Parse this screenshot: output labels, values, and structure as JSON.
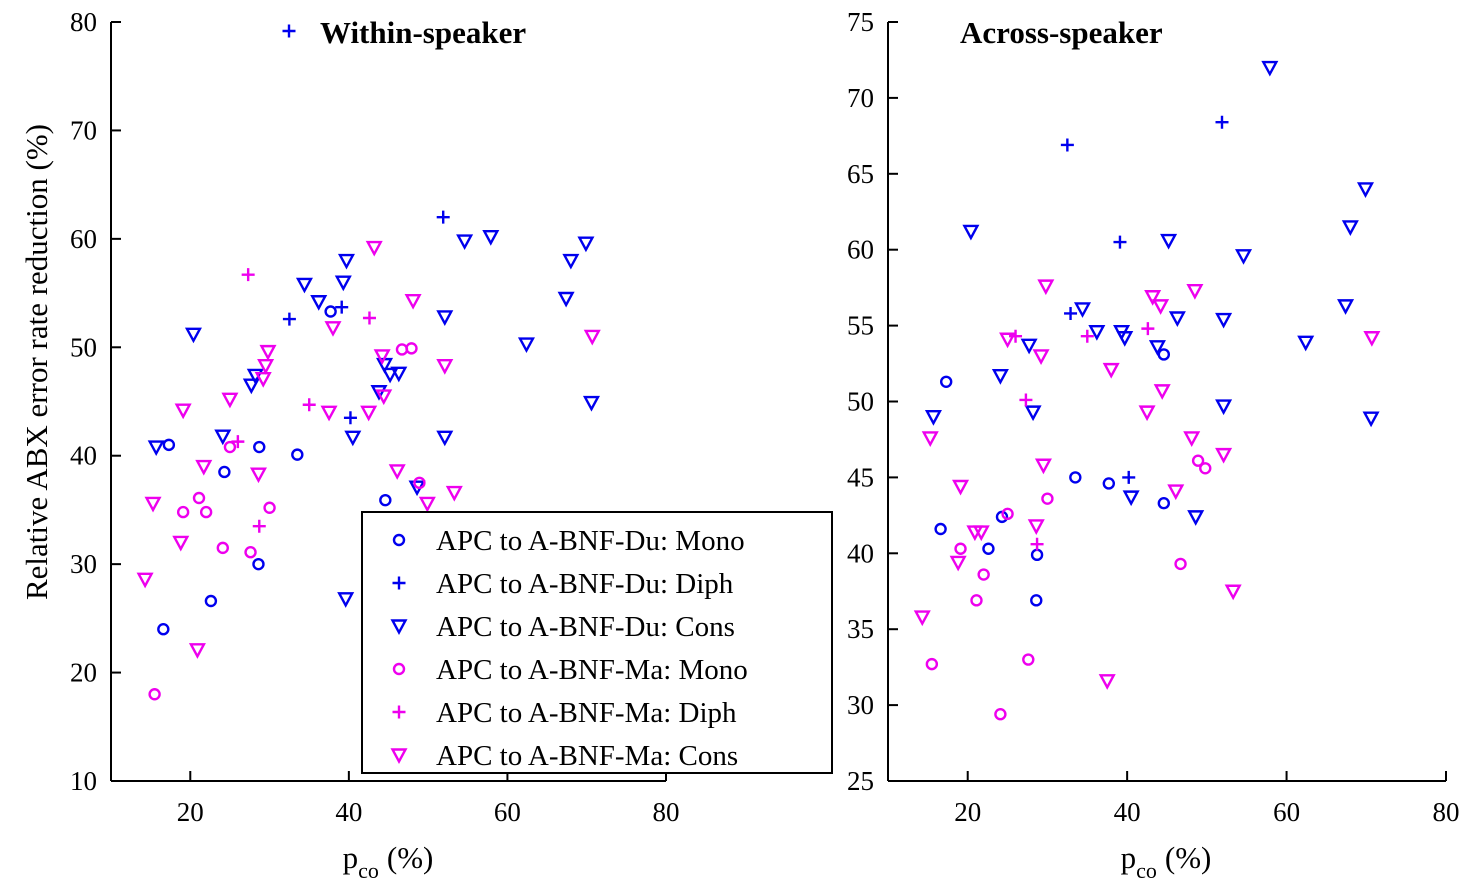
{
  "chart_data": [
    {
      "type": "scatter",
      "title": "Within-speaker",
      "xlabel": "p",
      "xlabel_sub": "co",
      "xlabel_unit": "(%)",
      "ylabel": "Relative ABX error rate reduction (%)",
      "xlim": [
        10,
        80
      ],
      "ylim": [
        10,
        80
      ],
      "xticks": [
        "20",
        "40",
        "60",
        "80"
      ],
      "yticks": [
        "10",
        "20",
        "30",
        "40",
        "50",
        "60",
        "70",
        "80"
      ],
      "legend_position": "bottom-right",
      "series": [
        {
          "name": "APC to A-BNF-Du: Mono",
          "color": "#0000ee",
          "marker": "circle",
          "points": [
            [
              16.6,
              24
            ],
            [
              17.3,
              41
            ],
            [
              22.6,
              26.6
            ],
            [
              24.3,
              38.5
            ],
            [
              28.6,
              30
            ],
            [
              28.7,
              40.8
            ],
            [
              33.5,
              40.1
            ],
            [
              37.7,
              53.3
            ],
            [
              44.6,
              35.9
            ]
          ]
        },
        {
          "name": "APC to A-BNF-Du: Diph",
          "color": "#0000ee",
          "marker": "plus",
          "points": [
            [
              32.5,
              52.6
            ],
            [
              39.1,
              53.7
            ],
            [
              40.2,
              43.5
            ],
            [
              51.9,
              62
            ]
          ]
        },
        {
          "name": "APC to A-BNF-Du: Cons",
          "color": "#0000ee",
          "marker": "triangle-down",
          "points": [
            [
              15.7,
              40.8
            ],
            [
              20.4,
              51.2
            ],
            [
              24.1,
              41.8
            ],
            [
              27.7,
              46.5
            ],
            [
              28.2,
              47.4
            ],
            [
              34.4,
              55.8
            ],
            [
              36.2,
              54.2
            ],
            [
              39.6,
              26.8
            ],
            [
              39.3,
              56
            ],
            [
              39.7,
              58
            ],
            [
              40.5,
              41.7
            ],
            [
              43.8,
              45.9
            ],
            [
              44.5,
              48.4
            ],
            [
              45.2,
              47.5
            ],
            [
              46.3,
              47.6
            ],
            [
              48.6,
              37.1
            ],
            [
              52.1,
              52.8
            ],
            [
              52.1,
              41.7
            ],
            [
              54.6,
              59.8
            ],
            [
              57.9,
              60.2
            ],
            [
              62.4,
              50.3
            ],
            [
              67.4,
              54.5
            ],
            [
              68,
              58
            ],
            [
              69.9,
              59.6
            ],
            [
              70.6,
              44.9
            ]
          ]
        },
        {
          "name": "APC to A-BNF-Ma: Mono",
          "color": "#ee00ee",
          "marker": "circle",
          "points": [
            [
              15.5,
              18
            ],
            [
              19.1,
              34.8
            ],
            [
              21.1,
              36.1
            ],
            [
              22,
              34.8
            ],
            [
              24.1,
              31.5
            ],
            [
              25,
              40.8
            ],
            [
              27.6,
              31.1
            ],
            [
              30,
              35.2
            ],
            [
              46.7,
              49.8
            ],
            [
              47.9,
              49.9
            ],
            [
              48.9,
              37.5
            ]
          ]
        },
        {
          "name": "APC to A-BNF-Ma: Diph",
          "color": "#ee00ee",
          "marker": "plus",
          "points": [
            [
              26,
              41.3
            ],
            [
              27.3,
              56.7
            ],
            [
              28.7,
              33.5
            ],
            [
              35,
              44.7
            ],
            [
              42.6,
              52.7
            ]
          ]
        },
        {
          "name": "APC to A-BNF-Ma: Cons",
          "color": "#ee00ee",
          "marker": "triangle-down",
          "points": [
            [
              14.3,
              28.6
            ],
            [
              15.3,
              35.6
            ],
            [
              18.8,
              32
            ],
            [
              19.1,
              44.2
            ],
            [
              20.9,
              22.1
            ],
            [
              21.7,
              39
            ],
            [
              25,
              45.2
            ],
            [
              28.6,
              38.3
            ],
            [
              29.2,
              47.1
            ],
            [
              29.5,
              48.3
            ],
            [
              29.8,
              49.6
            ],
            [
              37.5,
              44
            ],
            [
              38,
              51.8
            ],
            [
              42.5,
              44
            ],
            [
              43.2,
              59.2
            ],
            [
              44.2,
              49.2
            ],
            [
              44.4,
              45.5
            ],
            [
              46.1,
              38.6
            ],
            [
              48.1,
              54.3
            ],
            [
              49.9,
              35.6
            ],
            [
              52.1,
              48.3
            ],
            [
              53.3,
              36.6
            ],
            [
              70.7,
              51
            ]
          ]
        }
      ]
    },
    {
      "type": "scatter",
      "title": "Across-speaker",
      "xlabel": "p",
      "xlabel_sub": "co",
      "xlabel_unit": "(%)",
      "ylabel": "",
      "xlim": [
        10,
        80
      ],
      "ylim": [
        25,
        75
      ],
      "xticks": [
        "20",
        "40",
        "60",
        "80"
      ],
      "yticks": [
        "25",
        "30",
        "35",
        "40",
        "45",
        "50",
        "55",
        "60",
        "65",
        "70",
        "75"
      ],
      "series": [
        {
          "name": "APC to A-BNF-Du: Mono",
          "color": "#0000ee",
          "marker": "circle",
          "points": [
            [
              16.6,
              41.6
            ],
            [
              17.3,
              51.3
            ],
            [
              22.6,
              40.3
            ],
            [
              24.3,
              42.4
            ],
            [
              28.6,
              36.9
            ],
            [
              28.7,
              39.9
            ],
            [
              33.5,
              45
            ],
            [
              37.7,
              44.6
            ],
            [
              44.6,
              43.3
            ],
            [
              44.6,
              53.1
            ]
          ]
        },
        {
          "name": "APC to A-BNF-Du: Diph",
          "color": "#0000ee",
          "marker": "plus",
          "points": [
            [
              32.5,
              66.9
            ],
            [
              32.9,
              55.8
            ],
            [
              39.1,
              60.5
            ],
            [
              40.2,
              45
            ],
            [
              51.9,
              68.4
            ]
          ]
        },
        {
          "name": "APC to A-BNF-Du: Cons",
          "color": "#0000ee",
          "marker": "triangle-down",
          "points": [
            [
              15.7,
              49
            ],
            [
              20.4,
              61.2
            ],
            [
              24.1,
              51.7
            ],
            [
              27.7,
              53.7
            ],
            [
              28.2,
              49.3
            ],
            [
              34.4,
              56.1
            ],
            [
              36.2,
              54.6
            ],
            [
              39.3,
              54.6
            ],
            [
              39.7,
              54.2
            ],
            [
              40.5,
              43.7
            ],
            [
              43.8,
              53.6
            ],
            [
              45.2,
              60.6
            ],
            [
              46.3,
              55.5
            ],
            [
              48.6,
              42.4
            ],
            [
              52.1,
              55.4
            ],
            [
              52.1,
              49.7
            ],
            [
              54.6,
              59.6
            ],
            [
              57.9,
              72
            ],
            [
              62.4,
              53.9
            ],
            [
              67.4,
              56.3
            ],
            [
              68,
              61.5
            ],
            [
              69.9,
              64
            ],
            [
              70.6,
              48.9
            ]
          ]
        },
        {
          "name": "APC to A-BNF-Ma: Mono",
          "color": "#ee00ee",
          "marker": "circle",
          "points": [
            [
              15.5,
              32.7
            ],
            [
              19.1,
              40.3
            ],
            [
              21.1,
              36.9
            ],
            [
              22,
              38.6
            ],
            [
              24.1,
              29.4
            ],
            [
              25,
              42.6
            ],
            [
              27.6,
              33
            ],
            [
              30,
              43.6
            ],
            [
              46.7,
              39.3
            ],
            [
              48.9,
              46.1
            ],
            [
              49.8,
              45.6
            ]
          ]
        },
        {
          "name": "APC to A-BNF-Ma: Diph",
          "color": "#ee00ee",
          "marker": "plus",
          "points": [
            [
              26,
              54.3
            ],
            [
              27.3,
              50.1
            ],
            [
              28.7,
              40.6
            ],
            [
              35,
              54.3
            ],
            [
              42.6,
              54.8
            ]
          ]
        },
        {
          "name": "APC to A-BNF-Ma: Cons",
          "color": "#ee00ee",
          "marker": "triangle-down",
          "points": [
            [
              14.3,
              35.8
            ],
            [
              15.3,
              47.6
            ],
            [
              18.8,
              39.4
            ],
            [
              19.1,
              44.4
            ],
            [
              20.9,
              41.4
            ],
            [
              21.7,
              41.4
            ],
            [
              25,
              54.1
            ],
            [
              28.6,
              41.8
            ],
            [
              29.2,
              53
            ],
            [
              29.5,
              45.8
            ],
            [
              29.8,
              57.6
            ],
            [
              37.5,
              31.6
            ],
            [
              38,
              52.1
            ],
            [
              42.5,
              49.3
            ],
            [
              43.2,
              56.9
            ],
            [
              44.2,
              56.3
            ],
            [
              44.4,
              50.7
            ],
            [
              46.1,
              44.1
            ],
            [
              48.1,
              47.6
            ],
            [
              48.5,
              57.3
            ],
            [
              52.1,
              46.5
            ],
            [
              53.3,
              37.5
            ],
            [
              70.7,
              54.2
            ]
          ]
        }
      ]
    }
  ]
}
